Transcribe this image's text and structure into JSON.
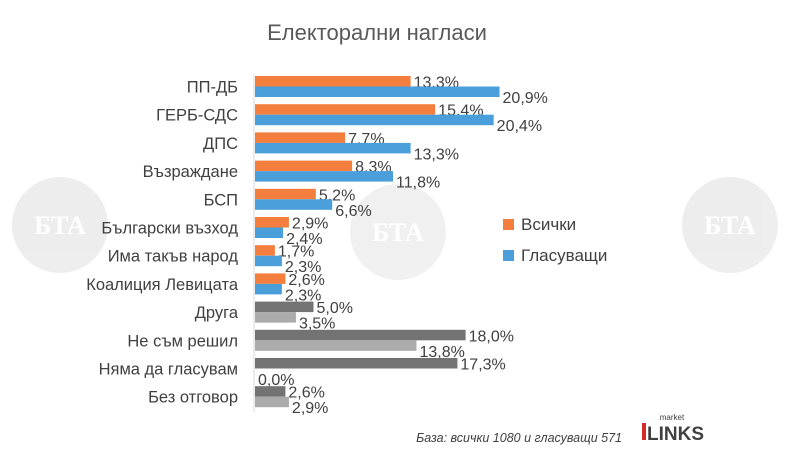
{
  "chart_data": {
    "type": "bar",
    "orientation": "horizontal",
    "title": "Електорални нагласи",
    "categories": [
      "ПП-ДБ",
      "ГЕРБ-СДС",
      "ДПС",
      "Възраждане",
      "БСП",
      "Български възход",
      "Има такъв народ",
      "Коалиция Левицата",
      "Друга",
      "Не съм решил",
      "Няма да гласувам",
      "Без отговор"
    ],
    "series": [
      {
        "name": "Всички",
        "values": [
          13.3,
          15.4,
          7.7,
          8.3,
          5.2,
          2.9,
          1.7,
          2.6,
          5.0,
          18.0,
          17.3,
          2.6
        ],
        "labels": [
          "13,3%",
          "15,4%",
          "7,7%",
          "8,3%",
          "5,2%",
          "2,9%",
          "1,7%",
          "2,6%",
          "5,0%",
          "18,0%",
          "17,3%",
          "2,6%"
        ]
      },
      {
        "name": "Гласуващи",
        "values": [
          20.9,
          20.4,
          13.3,
          11.8,
          6.6,
          2.4,
          2.3,
          2.3,
          3.5,
          13.8,
          0.0,
          2.9
        ],
        "labels": [
          "20,9%",
          "20,4%",
          "13,3%",
          "11,8%",
          "6,6%",
          "2,4%",
          "2,3%",
          "2,3%",
          "3,5%",
          "13,8%",
          "0,0%",
          "2,9%"
        ]
      }
    ],
    "legend_position": "right",
    "grid": false,
    "xlim": [
      0,
      25
    ],
    "colors": {
      "vsichki": "#F47E3E",
      "glasuvashti": "#4A9FDB",
      "other_vsichki": "#737373",
      "other_glasuvashti": "#ABABAB"
    },
    "neutral_from_index": 8
  },
  "footnote": "База: всички 1080 и гласуващи 571",
  "logo": {
    "small": "market",
    "big": "LINKS"
  },
  "watermark": "БТА"
}
